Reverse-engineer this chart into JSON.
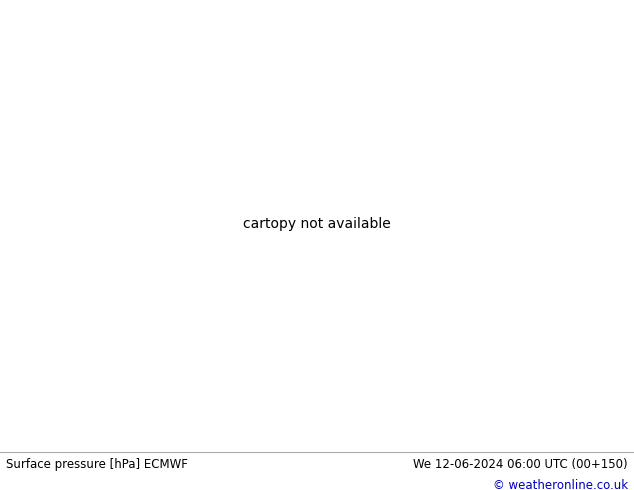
{
  "title_left": "Surface pressure [hPa] ECMWF",
  "title_right": "We 12-06-2024 06:00 UTC (00+150)",
  "copyright": "© weatheronline.co.uk",
  "ocean_color": "#e8eef4",
  "land_color": "#c8e8a0",
  "mountain_color": "#b0b8a8",
  "border_color": "#888888",
  "coast_color": "#666666",
  "isobar_blue": "#0055cc",
  "isobar_red": "#cc2200",
  "isobar_black": "#000000",
  "footer_bg": "#ffffff",
  "footer_text": "#000000",
  "copyright_color": "#0000bb",
  "map_extent": [
    -175,
    -50,
    10,
    80
  ],
  "figsize": [
    6.34,
    4.9
  ],
  "dpi": 100
}
